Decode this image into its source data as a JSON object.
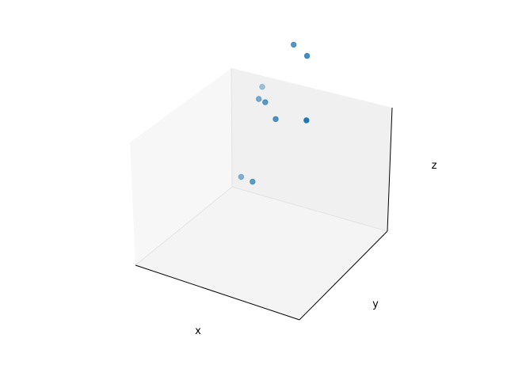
{
  "chart_data": {
    "type": "scatter",
    "projection": "3d",
    "title": "",
    "xlabel": "x",
    "ylabel": "y",
    "zlabel": "z",
    "ticks_visible": false,
    "grid": false,
    "pane_colors": {
      "left": "#f7f7f7",
      "back": "#f0f0f0",
      "floor": "#f4f4f4",
      "edge": "#e3e3e3"
    },
    "marker_color": "#1f77b4",
    "xlim": [
      0,
      1
    ],
    "ylim": [
      0,
      1
    ],
    "zlim": [
      0,
      1
    ],
    "points": [
      {
        "x": 0.7,
        "y": 0.55,
        "z": 0.95
      },
      {
        "x": 0.78,
        "y": 0.55,
        "z": 0.92
      },
      {
        "x": 0.57,
        "y": 0.45,
        "z": 0.7
      },
      {
        "x": 0.82,
        "y": 0.45,
        "z": 0.68
      },
      {
        "x": 0.5,
        "y": 0.5,
        "z": 0.68
      },
      {
        "x": 0.63,
        "y": 0.45,
        "z": 0.64
      },
      {
        "x": 0.45,
        "y": 0.62,
        "z": 0.68
      },
      {
        "x": 0.4,
        "y": 0.45,
        "z": 0.33
      },
      {
        "x": 0.5,
        "y": 0.4,
        "z": 0.35
      }
    ]
  }
}
